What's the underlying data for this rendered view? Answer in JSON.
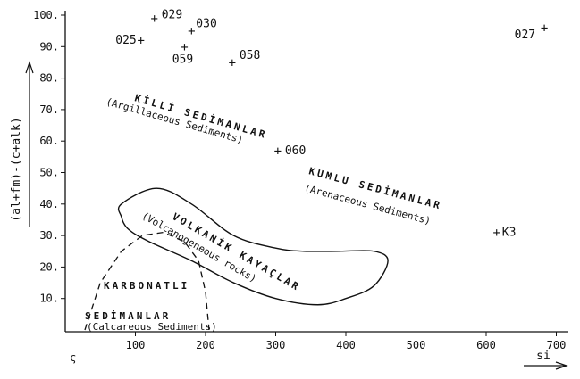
{
  "chart_data": {
    "type": "scatter",
    "xlabel": "si",
    "ylabel": "(al+fm)-(c+alk)",
    "xlim": [
      0,
      750
    ],
    "ylim": [
      0,
      100
    ],
    "x_ticks": [
      "100",
      "200",
      "300",
      "400",
      "500",
      "600",
      "700"
    ],
    "y_ticks": [
      "10.",
      "20.",
      "30.",
      "40.",
      "50.",
      "60.",
      "70.",
      "80.",
      "90.",
      "100."
    ],
    "x_zero_label": "ς",
    "points": [
      {
        "label": "029",
        "x": 127,
        "y": 99
      },
      {
        "label": "030",
        "x": 180,
        "y": 95
      },
      {
        "label": "025",
        "x": 108,
        "y": 92
      },
      {
        "label": "059",
        "x": 170,
        "y": 90
      },
      {
        "label": "058",
        "x": 238,
        "y": 85
      },
      {
        "label": "027",
        "x": 683,
        "y": 96
      },
      {
        "label": "060",
        "x": 303,
        "y": 57
      },
      {
        "label": "K3",
        "x": 615,
        "y": 31
      }
    ],
    "regions": [
      {
        "name": "KİLLİ SEDİMANLAR",
        "subtitle": "(Argillaceous Sediments)"
      },
      {
        "name": "KUMLU SEDİMANLAR",
        "subtitle": "(Arenaceous Sediments)"
      },
      {
        "name": "VOLKANİK KAYAÇLAR",
        "subtitle": "(Volcanogeneous rocks)"
      },
      {
        "name": "KARBONATLI",
        "name2": "SEDİMANLAR",
        "subtitle": "(Calcareous Sediments)"
      }
    ],
    "volcanic_outline": [
      [
        80,
        40
      ],
      [
        130,
        45
      ],
      [
        180,
        40
      ],
      [
        240,
        30
      ],
      [
        300,
        26
      ],
      [
        340,
        25
      ],
      [
        390,
        25
      ],
      [
        440,
        25
      ],
      [
        460,
        22
      ],
      [
        440,
        14
      ],
      [
        400,
        10
      ],
      [
        360,
        8
      ],
      [
        300,
        10
      ],
      [
        240,
        15
      ],
      [
        180,
        22
      ],
      [
        120,
        28
      ],
      [
        90,
        32
      ],
      [
        80,
        36
      ]
    ],
    "carbonate_outline": [
      [
        28,
        0
      ],
      [
        50,
        15
      ],
      [
        80,
        25
      ],
      [
        110,
        30
      ],
      [
        140,
        31
      ],
      [
        170,
        28
      ],
      [
        190,
        22
      ],
      [
        200,
        12
      ],
      [
        205,
        0
      ]
    ]
  }
}
